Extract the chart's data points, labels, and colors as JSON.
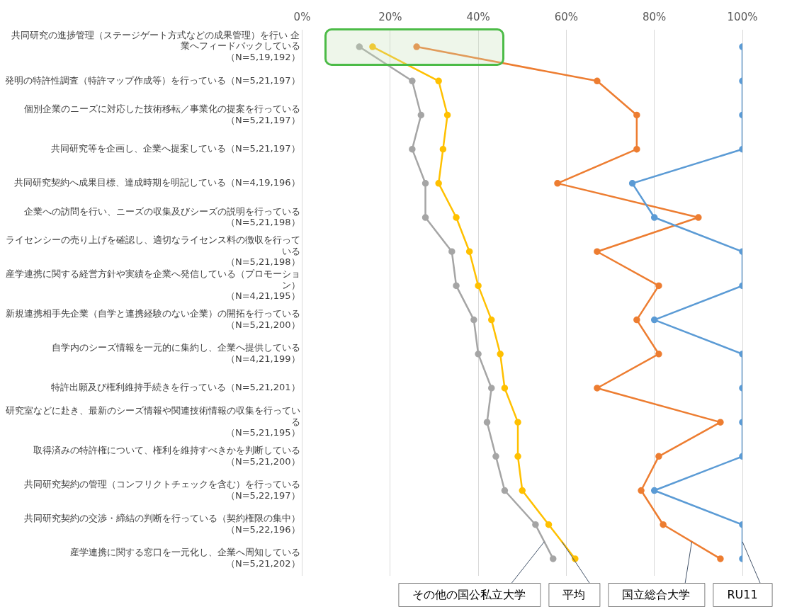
{
  "chart_data": {
    "type": "line",
    "orientation": "horizontal",
    "marker": "circle",
    "grid": "x",
    "categories": [
      "共同研究の進捗管理（ステージゲート方式などの成果管理）を行い 企業へフィードバックしている（N=5,19,192）",
      "発明の特許性調査（特許マップ作成等）を行っている（N=5,21,197）",
      "個別企業のニーズに対応した技術移転／事業化の提案を行っている（N=5,21,197）",
      "共同研究等を企画し、企業へ提案している（N=5,21,197）",
      "共同研究契約へ成果目標、達成時期を明記している（N=4,19,196）",
      "企業への訪問を行い、ニーズの収集及びシーズの説明を行っている（N=5,21,198）",
      "ライセンシーの売り上げを確認し、適切なライセンス料の徴収を行っている（N=5,21,198）",
      "産学連携に関する経営方針や実績を企業へ発信している（プロモーション）（N=4,21,195）",
      "新規連携相手先企業（自学と連携経験のない企業）の開拓を行っている（N=5,21,200）",
      "自学内のシーズ情報を一元的に集約し、企業へ提供している（N=4,21,199）",
      "特許出願及び権利維持手続きを行っている（N=5,21,201）",
      "研究室などに赴き、最新のシーズ情報や関連技術情報の収集を行っている（N=5,21,195）",
      "取得済みの特許権について、権利を維持すべきかを判断している（N=5,21,200）",
      "共同研究契約の管理（コンフリクトチェックを含む）を行っている（N=5,22,197）",
      "共同研究契約の交渉・締結の判断を行っている（契約権限の集中）（N=5,22,196）",
      "産学連携に関する窓口を一元化し、企業へ周知している（N=5,21,202）"
    ],
    "series": [
      {
        "name": "RU11",
        "color": "#5b9bd5",
        "values": [
          100,
          100,
          100,
          100,
          75,
          80,
          100,
          100,
          80,
          100,
          100,
          100,
          100,
          80,
          100,
          100
        ]
      },
      {
        "name": "国立総合大学",
        "color": "#ed7d31",
        "values": [
          26,
          67,
          76,
          76,
          58,
          90,
          67,
          81,
          76,
          81,
          67,
          95,
          81,
          77,
          82,
          95
        ]
      },
      {
        "name": "平均",
        "color": "#ffc000",
        "values": [
          16,
          31,
          33,
          32,
          31,
          35,
          38,
          40,
          43,
          45,
          46,
          49,
          49,
          50,
          56,
          62
        ]
      },
      {
        "name": "その他の国公私立大学",
        "color": "#a5a5a5",
        "values": [
          13,
          25,
          27,
          25,
          28,
          28,
          34,
          35,
          39,
          40,
          43,
          42,
          44,
          46,
          53,
          57
        ]
      }
    ],
    "xlim": [
      0,
      100
    ],
    "xticks": [
      {
        "value": 0,
        "label": "0%"
      },
      {
        "value": 20,
        "label": "20%"
      },
      {
        "value": 40,
        "label": "40%"
      },
      {
        "value": 60,
        "label": "60%"
      },
      {
        "value": 80,
        "label": "80%"
      },
      {
        "value": 100,
        "label": "100%"
      }
    ]
  }
}
